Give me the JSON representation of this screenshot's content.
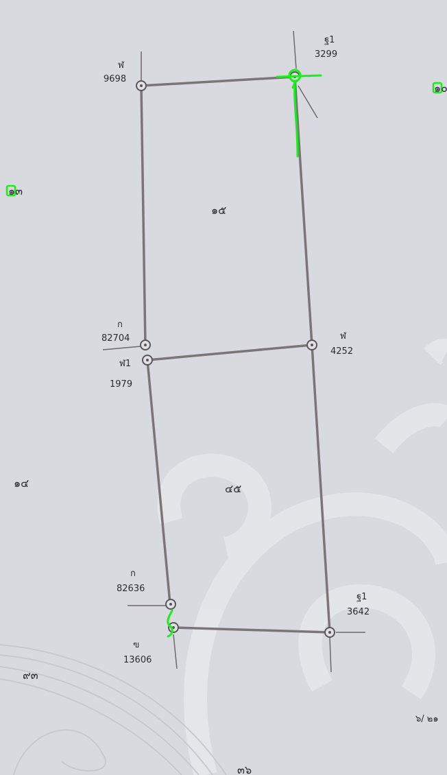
{
  "map": {
    "parcel_areas": {
      "north": "๑๕",
      "south": "๔๕"
    },
    "neighbour_labels": {
      "left_upper": "๑๓",
      "left_middle": "๑๔",
      "left_lower": "๙๓",
      "right_top": "๑๐",
      "bottom_center": "๓๖",
      "bottom_right": "๖/ ๒๑"
    },
    "markers": {
      "nw": {
        "letter": "ฬ",
        "number": "9698"
      },
      "ne": {
        "letter": "ฐ1",
        "number": "3299"
      },
      "w_upper": {
        "letter": "ก",
        "number": "82704"
      },
      "w_lower": {
        "letter": "ฬ1",
        "number": "1979"
      },
      "e_middle": {
        "letter": "ฬ",
        "number": "4252"
      },
      "sw_upper": {
        "letter": "ก",
        "number": "82636"
      },
      "sw_lower": {
        "letter": "ฃ",
        "number": "13606"
      },
      "se": {
        "letter": "ฐ1",
        "number": "3642"
      }
    },
    "colors": {
      "paper": "#d9dadf",
      "boundary": "#7b7478",
      "ink": "#2a2a30",
      "highlight": "#18f018",
      "watermark": "#e6e7eb"
    }
  }
}
